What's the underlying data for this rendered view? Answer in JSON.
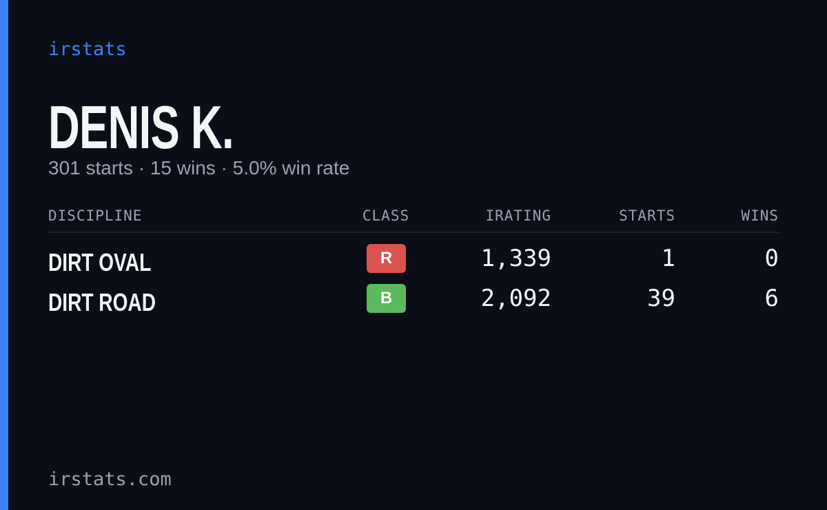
{
  "brand": "irstats",
  "driver": {
    "name": "DENIS K.",
    "summary": "301 starts · 15 wins · 5.0% win rate"
  },
  "table": {
    "headers": [
      "DISCIPLINE",
      "CLASS",
      "IRATING",
      "STARTS",
      "WINS"
    ],
    "rows": [
      {
        "discipline": "DIRT OVAL",
        "class": "R",
        "class_color": "#d9534f",
        "irating": "1,339",
        "starts": 1,
        "wins": 0
      },
      {
        "discipline": "DIRT ROAD",
        "class": "B",
        "class_color": "#5cb85c",
        "irating": "2,092",
        "starts": 39,
        "wins": 6
      }
    ]
  },
  "footer": "irstats.com"
}
